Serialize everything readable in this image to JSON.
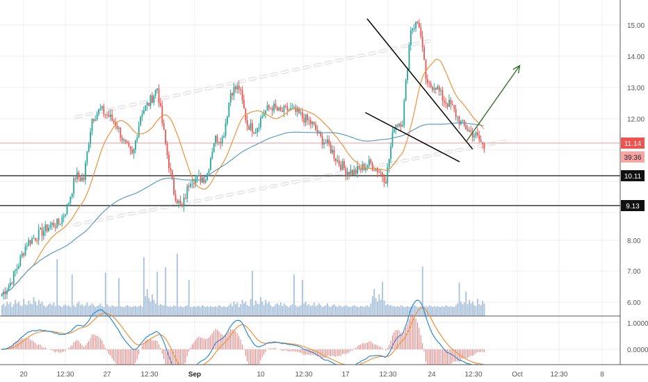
{
  "chart_data": {
    "type": "candlestick",
    "colors": {
      "up": "#26a69a",
      "down": "#ef5350",
      "volume": "#9fbbd6",
      "ma_fast": "#f0913b",
      "ma_slow": "#5b9bbf",
      "macd": "#2a8ad1",
      "signal": "#f0913b",
      "histogram": "#ef5350",
      "trend_arrow": "#356e2b",
      "grid": "#ececec"
    },
    "price_axis": {
      "ticks": [
        "15.00",
        "14.00",
        "13.00",
        "12.00",
        "8.00",
        "7.00",
        "6.00"
      ],
      "range": [
        5.5,
        15.5
      ]
    },
    "macd_axis": {
      "ticks": [
        "1.0000",
        "0.0000"
      ]
    },
    "time_axis": {
      "labels": [
        "20",
        "12:30",
        "27",
        "12:30",
        "Sep",
        "10",
        "12:30",
        "17",
        "12:30",
        "24",
        "12:30",
        "Oct",
        "12:30",
        "8"
      ],
      "bold": [
        "Sep"
      ]
    },
    "price_badges": [
      {
        "value": "11.14",
        "style": "red"
      },
      {
        "value": "39:36",
        "style": "red-light"
      },
      {
        "value": "10.11",
        "style": "black"
      },
      {
        "value": "9.13",
        "style": "black"
      }
    ],
    "horizontal_levels": [
      10.11,
      9.13
    ],
    "current_price": 11.14,
    "price_path": [
      6.25,
      6.6,
      7.2,
      7.9,
      8.1,
      8.3,
      8.5,
      8.55,
      9.1,
      10.1,
      10.0,
      12.0,
      12.3,
      12.1,
      11.8,
      11.1,
      10.7,
      12.2,
      12.5,
      13.0,
      11.1,
      9.6,
      9.0,
      10.0,
      10.0,
      10.05,
      11.3,
      11.3,
      12.9,
      13.0,
      11.8,
      11.6,
      12.2,
      12.4,
      12.2,
      12.3,
      12.2,
      12.0,
      11.8,
      11.3,
      11.05,
      10.6,
      10.3,
      10.2,
      10.35,
      10.5,
      10.3,
      10.0,
      11.8,
      11.9,
      14.9,
      15.1,
      13.0,
      13.1,
      12.6,
      12.4,
      11.9,
      11.6,
      11.4,
      11.0
    ],
    "volume": [
      1.2,
      1.4,
      1.1,
      1.6,
      1.3,
      1.5,
      1.0,
      1.3,
      1.8,
      1.4,
      1.6,
      1.2,
      1.1,
      1.9,
      1.3,
      1.2,
      1.7,
      1.4,
      1.3,
      2.1,
      1.6,
      1.2,
      1.8,
      1.4,
      1.6,
      1.2,
      1.0,
      1.1,
      1.3,
      1.4,
      1.2,
      1.5,
      1.1,
      1.4,
      1.2,
      1.1,
      1.0,
      1.2,
      1.3,
      1.1,
      1.2,
      1.0,
      1.1,
      1.2,
      1.0,
      1.4,
      1.6,
      1.2,
      1.3,
      1.1,
      1.2,
      1.5,
      1.1,
      1.2,
      1.4,
      1.2,
      1.0,
      1.1,
      1.2,
      1.4,
      1.1,
      1.0,
      1.2,
      1.3,
      1.1,
      1.0,
      1.2,
      1.1,
      1.0,
      1.1,
      1.2,
      1.1,
      1.0,
      1.0,
      1.1,
      1.2,
      1.1,
      1.0,
      1.0,
      1.1,
      1.1,
      1.0,
      1.1,
      1.2,
      1.0,
      1.4,
      2.2,
      3.0,
      2.0,
      1.6,
      2.4,
      1.8,
      1.4,
      1.7,
      1.2,
      1.3,
      1.2,
      1.2,
      1.1,
      1.1,
      1.0,
      1.1,
      1.0,
      1.2,
      1.1,
      1.0,
      1.0,
      1.1,
      1.0,
      1.0,
      1.1,
      1.2,
      1.1,
      1.0,
      1.0,
      1.1,
      1.0,
      1.1,
      1.1,
      1.0,
      1.2,
      1.1,
      1.0,
      1.1,
      1.0,
      1.1,
      1.0,
      1.0,
      1.1,
      1.0,
      1.2,
      1.1,
      1.0,
      1.1,
      1.0,
      1.0
    ],
    "volume_spikes": [
      {
        "bar": 33,
        "value": 6.3
      },
      {
        "bar": 42,
        "value": 4.6
      },
      {
        "bar": 62,
        "value": 4.8
      },
      {
        "bar": 70,
        "value": 4.2
      },
      {
        "bar": 85,
        "value": 6.5
      },
      {
        "bar": 93,
        "value": 4.9
      },
      {
        "bar": 98,
        "value": 5.4
      },
      {
        "bar": 105,
        "value": 6.9
      },
      {
        "bar": 112,
        "value": 4.0
      },
      {
        "bar": 150,
        "value": 5.0
      },
      {
        "bar": 175,
        "value": 4.6
      },
      {
        "bar": 180,
        "value": 4.0
      },
      {
        "bar": 228,
        "value": 3.8
      },
      {
        "bar": 252,
        "value": 5.5
      },
      {
        "bar": 274,
        "value": 3.7
      },
      {
        "bar": 278,
        "value": 2.7
      },
      {
        "bar": 337,
        "value": 8.0
      },
      {
        "bar": 339,
        "value": 7.6
      },
      {
        "bar": 342,
        "value": 6.9
      },
      {
        "bar": 345,
        "value": 6.0
      },
      {
        "bar": 350,
        "value": 7.2
      },
      {
        "bar": 354,
        "value": 5.4
      },
      {
        "bar": 360,
        "value": 4.9
      },
      {
        "bar": 366,
        "value": 3.4
      }
    ],
    "annotations": {
      "upper_channel": [
        [
          0.121,
          12.05
        ],
        [
          0.694,
          14.5
        ]
      ],
      "lower_channel": [
        [
          0.119,
          8.5
        ],
        [
          0.824,
          11.25
        ]
      ],
      "wedge_top": [
        [
          0.592,
          15.2
        ],
        [
          0.762,
          10.95
        ]
      ],
      "wedge_bottom": [
        [
          0.589,
          12.2
        ],
        [
          0.741,
          10.55
        ]
      ],
      "arrow": [
        [
          0.752,
          11.2
        ],
        [
          0.838,
          13.7
        ]
      ]
    }
  }
}
